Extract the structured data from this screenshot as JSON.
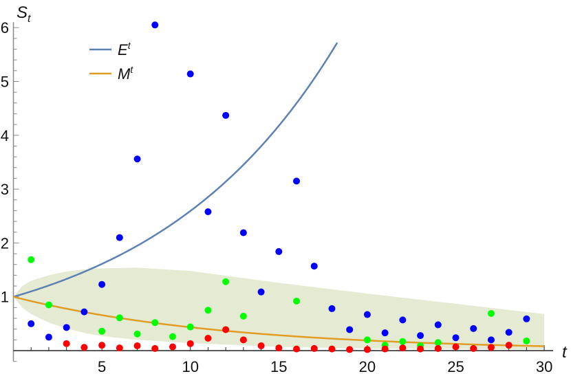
{
  "chart_data": {
    "type": "scatter",
    "xlabel": "t",
    "ylabel": "S_t",
    "xlim": [
      0,
      30.5
    ],
    "ylim": [
      -0.2,
      6
    ],
    "x_ticks": [
      5,
      10,
      15,
      20,
      25,
      30
    ],
    "y_ticks": [
      1,
      2,
      3,
      4,
      5,
      6
    ],
    "grid": false,
    "legend_placement": "top-left",
    "lines": [
      {
        "name": "E",
        "superscript": "t",
        "formula_base": 1.1,
        "t_range": [
          0,
          18.3
        ],
        "color": "#5E81B5"
      },
      {
        "name": "M",
        "superscript": "t",
        "formula_base": 0.92,
        "t_range": [
          0,
          30
        ],
        "color": "#E19C24"
      }
    ],
    "band": {
      "color": "#E4EBD2",
      "t": [
        0,
        0.5,
        1,
        2,
        3,
        4,
        5,
        7,
        10,
        15,
        20,
        25,
        30
      ],
      "upper": [
        1,
        1.2,
        1.3,
        1.4,
        1.47,
        1.51,
        1.53,
        1.54,
        1.48,
        1.26,
        1.06,
        0.87,
        0.68
      ],
      "lower": [
        1,
        0.8,
        0.68,
        0.52,
        0.41,
        0.33,
        0.27,
        0.2,
        0.14,
        0.07,
        0.04,
        0.03,
        0.02
      ]
    },
    "series": [
      {
        "color": "#0000FF",
        "points": [
          [
            1,
            0.5
          ],
          [
            2,
            0.25
          ],
          [
            3,
            0.43
          ],
          [
            4,
            0.72
          ],
          [
            5,
            1.23
          ],
          [
            6,
            2.1
          ],
          [
            7,
            3.56
          ],
          [
            8,
            6.05
          ],
          [
            10,
            5.14
          ],
          [
            11,
            2.58
          ],
          [
            12,
            4.37
          ],
          [
            13,
            2.19
          ],
          [
            14,
            1.09
          ],
          [
            15,
            1.84
          ],
          [
            16,
            3.15
          ],
          [
            17,
            1.57
          ],
          [
            18,
            0.78
          ],
          [
            19,
            0.39
          ],
          [
            20,
            0.67
          ],
          [
            21,
            0.33
          ],
          [
            22,
            0.57
          ],
          [
            23,
            0.28
          ],
          [
            24,
            0.48
          ],
          [
            25,
            0.24
          ],
          [
            26,
            0.41
          ],
          [
            27,
            0.2
          ],
          [
            28,
            0.34
          ],
          [
            29,
            0.59
          ]
        ]
      },
      {
        "color": "#00FF00",
        "points": [
          [
            1,
            1.69
          ],
          [
            2,
            0.85
          ],
          [
            5,
            0.36
          ],
          [
            6,
            0.61
          ],
          [
            7,
            0.31
          ],
          [
            8,
            0.52
          ],
          [
            9,
            0.26
          ],
          [
            10,
            0.44
          ],
          [
            11,
            0.75
          ],
          [
            12,
            1.28
          ],
          [
            13,
            0.64
          ],
          [
            16,
            0.92
          ],
          [
            20,
            0.2
          ],
          [
            21,
            0.1
          ],
          [
            22,
            0.17
          ],
          [
            23,
            0.09
          ],
          [
            24,
            0.15
          ],
          [
            27,
            0.69
          ],
          [
            29,
            0.18
          ]
        ]
      },
      {
        "color": "#FF0000",
        "points": [
          [
            3,
            0.13
          ],
          [
            4,
            0.06
          ],
          [
            5,
            0.1
          ],
          [
            6,
            0.05
          ],
          [
            7,
            0.09
          ],
          [
            8,
            0.04
          ],
          [
            9,
            0.07
          ],
          [
            10,
            0.13
          ],
          [
            11,
            0.23
          ],
          [
            12,
            0.39
          ],
          [
            13,
            0.2
          ],
          [
            14,
            0.09
          ],
          [
            15,
            0.05
          ],
          [
            16,
            0.03
          ],
          [
            17,
            0.04
          ],
          [
            18,
            0.03
          ],
          [
            19,
            0.02
          ],
          [
            20,
            0.02
          ],
          [
            21,
            0.03
          ],
          [
            22,
            0.05
          ],
          [
            23,
            0.03
          ],
          [
            24,
            0.04
          ],
          [
            25,
            0.07
          ],
          [
            26,
            0.04
          ],
          [
            27,
            0.06
          ],
          [
            28,
            0.1
          ]
        ]
      }
    ]
  }
}
